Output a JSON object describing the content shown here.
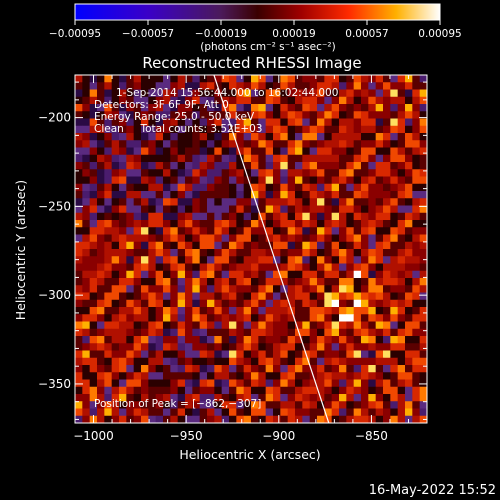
{
  "chart_data": {
    "type": "heatmap",
    "title": "Reconstructed RHESSI Image",
    "xlabel": "Heliocentric X (arcsec)",
    "ylabel": "Heliocentric Y (arcsec)",
    "xlim": [
      -1010,
      -820
    ],
    "ylim": [
      -372,
      -176
    ],
    "xticks": [
      -1000,
      -950,
      -900,
      -850
    ],
    "xtick_labels": [
      "−1000",
      "−950",
      "−900",
      "−850"
    ],
    "yticks": [
      -200,
      -250,
      -300,
      -350
    ],
    "ytick_labels": [
      "−200",
      "−250",
      "−300",
      "−350"
    ],
    "colorbar": {
      "range": [
        -0.00095,
        0.00095
      ],
      "ticks": [
        -0.00095,
        -0.00057,
        -0.00019,
        0.00019,
        0.00057,
        0.00095
      ],
      "tick_labels": [
        "−0.00095",
        "−0.00057",
        "−0.00019",
        "0.00019",
        "0.00057",
        "0.00095"
      ],
      "unit_label": "(photons cm⁻² s⁻¹ asec⁻²)"
    },
    "info_lines": [
      "1-Sep-2014 15:56:44.000 to 16:02:44.000",
      "Detectors: 3F 6F 9F, Att 0",
      "Energy Range: 25.0 - 50.0 keV",
      "Clean     Total counts: 3.52E+03"
    ],
    "peak_label": "Position of Peak = [−862,−307]",
    "peak": {
      "x": -862,
      "y": -307
    },
    "limb_line": {
      "x1": -935,
      "y1": -176,
      "x2": -873,
      "y2": -372
    },
    "grid": false
  },
  "footer": {
    "timestamp": "16-May-2022 15:52"
  },
  "colors": {
    "background": "#000000",
    "text": "#ffffff"
  }
}
